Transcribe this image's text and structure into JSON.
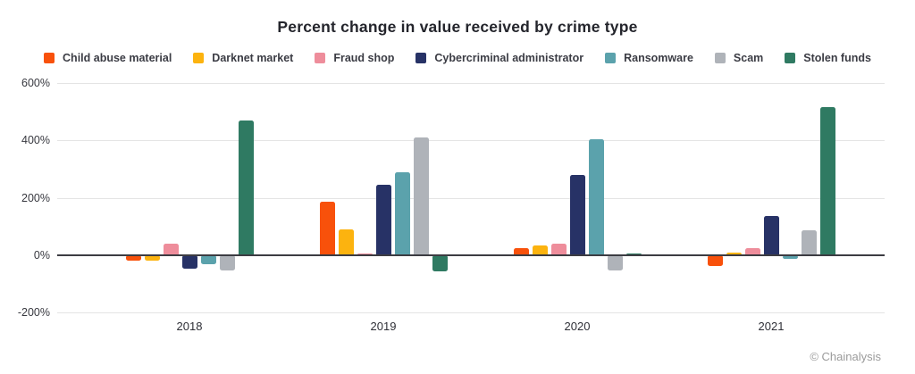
{
  "title": "Percent change in value received by crime type",
  "footer": {
    "credit": "© Chainalysis"
  },
  "chart_data": {
    "type": "bar",
    "title": "Percent change in value received by crime type",
    "xlabel": "",
    "ylabel": "",
    "categories": [
      "2018",
      "2019",
      "2020",
      "2021"
    ],
    "series": [
      {
        "name": "Child abuse material",
        "color": "#F8510B",
        "values": [
          -15,
          185,
          25,
          -35
        ]
      },
      {
        "name": "Darknet market",
        "color": "#FCB30F",
        "values": [
          -15,
          90,
          35,
          10
        ]
      },
      {
        "name": "Fraud shop",
        "color": "#EE8D9B",
        "values": [
          40,
          5,
          40,
          25
        ]
      },
      {
        "name": "Cybercriminal administrator",
        "color": "#273266",
        "values": [
          -45,
          245,
          280,
          135
        ]
      },
      {
        "name": "Ransomware",
        "color": "#5BA2AC",
        "values": [
          -30,
          290,
          405,
          -10
        ]
      },
      {
        "name": "Scam",
        "color": "#AFB3B9",
        "values": [
          -50,
          410,
          -50,
          85
        ]
      },
      {
        "name": "Stolen funds",
        "color": "#2F7A62",
        "values": [
          470,
          -55,
          5,
          515
        ]
      }
    ],
    "ylim": [
      -200,
      600
    ],
    "yticks": [
      {
        "value": 600,
        "label": "600%"
      },
      {
        "value": 400,
        "label": "400%"
      },
      {
        "value": 200,
        "label": "200%"
      },
      {
        "value": 0,
        "label": "0%"
      },
      {
        "value": -200,
        "label": "-200%"
      }
    ],
    "grid": true,
    "legend_position": "top"
  }
}
